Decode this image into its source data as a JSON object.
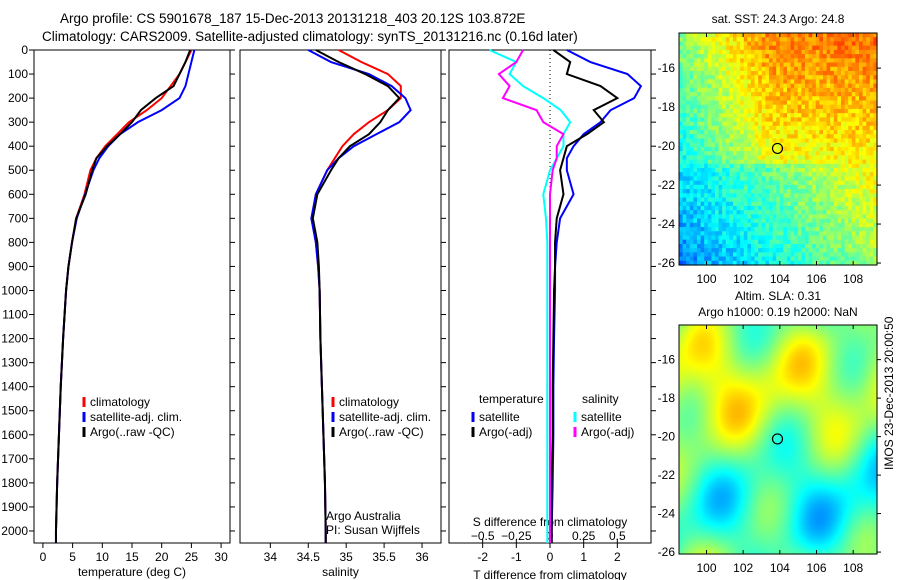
{
  "header": {
    "line1": "Argo profile: CS 5901678_187 15-Dec-2013 20131218_403 20.12S 103.872E",
    "line2": "Climatology: CARS2009. Satellite-adjusted climatology: synTS_20131216.nc (0.16d later)"
  },
  "side_stamp": "IMOS 23-Dec-2013 20:00:50",
  "chart_data": [
    {
      "type": "line",
      "name": "temperature",
      "xlabel": "temperature (deg C)",
      "ylabel": "",
      "xlim": [
        -1.5,
        31.5
      ],
      "ylim": [
        2050,
        0
      ],
      "xticks": [
        0,
        5,
        10,
        15,
        20,
        25,
        30
      ],
      "yticks": [
        0,
        100,
        200,
        300,
        400,
        500,
        600,
        700,
        800,
        900,
        1000,
        1100,
        1200,
        1300,
        1400,
        1500,
        1600,
        1700,
        1800,
        1900,
        2000
      ],
      "depth": [
        0,
        50,
        100,
        150,
        200,
        250,
        300,
        350,
        400,
        450,
        500,
        600,
        700,
        800,
        900,
        1000,
        1200,
        1400,
        1600,
        1800,
        2000,
        2050
      ],
      "legend": [
        "climatology",
        "satellite-adj. clim.",
        "Argo(..raw -QC)"
      ],
      "series": [
        {
          "name": "climatology",
          "color": "#ff0000",
          "values": [
            25,
            24,
            23,
            21.5,
            20,
            17.5,
            14.5,
            12.5,
            10.5,
            9,
            8,
            7,
            5.6,
            4.9,
            4.3,
            3.9,
            3.4,
            3.0,
            2.7,
            2.4,
            2.2,
            2.2
          ]
        },
        {
          "name": "satellite-adj. clim.",
          "color": "#0000ff",
          "values": [
            25.5,
            25,
            24.5,
            24,
            23,
            20,
            16,
            13,
            11,
            9.5,
            8.5,
            7.1,
            5.7,
            4.9,
            4.3,
            3.9,
            3.4,
            3.0,
            2.7,
            2.4,
            2.2,
            2.2
          ]
        },
        {
          "name": "Argo(..raw -QC)",
          "color": "#000000",
          "values": [
            24.8,
            24,
            23,
            22,
            19,
            16.5,
            15,
            13,
            10.8,
            9,
            8.3,
            7.2,
            5.6,
            4.9,
            4.3,
            3.9,
            3.4,
            3.0,
            2.7,
            2.4,
            2.2,
            2.2
          ]
        }
      ]
    },
    {
      "type": "line",
      "name": "salinity",
      "xlabel": "salinity",
      "xlim": [
        33.6,
        36.25
      ],
      "ylim": [
        2050,
        0
      ],
      "xticks": [
        34,
        34.5,
        35,
        35.5,
        36
      ],
      "annotation": [
        "Argo Australia",
        "PI: Susan Wijffels"
      ],
      "depth": [
        0,
        50,
        100,
        150,
        200,
        250,
        300,
        350,
        400,
        450,
        500,
        600,
        700,
        800,
        900,
        1000,
        1200,
        1400,
        1600,
        1800,
        2000,
        2050
      ],
      "legend": [
        "climatology",
        "satellite-adj. clim.",
        "Argo(..raw -QC)"
      ],
      "series": [
        {
          "name": "climatology",
          "color": "#ff0000",
          "values": [
            34.9,
            35.2,
            35.55,
            35.72,
            35.72,
            35.55,
            35.3,
            35.1,
            34.95,
            34.85,
            34.75,
            34.6,
            34.55,
            34.6,
            34.63,
            34.65,
            34.66,
            34.68,
            34.7,
            34.72,
            34.73,
            34.73
          ]
        },
        {
          "name": "satellite-adj. clim.",
          "color": "#0000ff",
          "values": [
            34.5,
            34.8,
            35.3,
            35.6,
            35.78,
            35.85,
            35.7,
            35.4,
            35.1,
            34.9,
            34.75,
            34.6,
            34.54,
            34.6,
            34.63,
            34.65,
            34.66,
            34.68,
            34.7,
            34.72,
            34.73,
            34.73
          ]
        },
        {
          "name": "Argo(..raw -QC)",
          "color": "#000000",
          "values": [
            34.6,
            34.9,
            35.25,
            35.55,
            35.7,
            35.55,
            35.45,
            35.3,
            35.05,
            34.9,
            34.8,
            34.62,
            34.56,
            34.62,
            34.64,
            34.65,
            34.66,
            34.68,
            34.7,
            34.72,
            34.73,
            34.73
          ]
        }
      ]
    },
    {
      "type": "line",
      "name": "differences",
      "xlabel": "T difference from climatology",
      "x2label": "S difference from climatology",
      "xlim": [
        -3,
        3
      ],
      "x2lim": [
        -0.75,
        0.75
      ],
      "ylim": [
        2050,
        0
      ],
      "xticks": [
        -2,
        -1,
        0,
        1,
        2
      ],
      "x2ticks": [
        -0.5,
        -0.25,
        0,
        0.25,
        0.5
      ],
      "legend_titles": [
        "temperature",
        "salinity"
      ],
      "legend": [
        "satellite",
        "Argo(-adj)",
        "satellite",
        "Argo(-adj)"
      ],
      "depth": [
        0,
        50,
        100,
        150,
        200,
        250,
        300,
        350,
        400,
        450,
        500,
        600,
        700,
        800,
        900,
        1000,
        1200,
        1400,
        1600,
        1800,
        2000,
        2050
      ],
      "series": [
        {
          "name": "T satellite",
          "axis": "T",
          "color": "#0000ff",
          "values": [
            0.5,
            1.2,
            2.3,
            2.7,
            2.5,
            1.8,
            1.5,
            1.0,
            0.7,
            0.5,
            0.5,
            0.7,
            0.3,
            0.2,
            0.15,
            0.15,
            0.12,
            0.1,
            0.1,
            0.08,
            0.05,
            0.05
          ]
        },
        {
          "name": "T Argo(-adj)",
          "axis": "T",
          "color": "#000000",
          "values": [
            0.1,
            0.6,
            0.5,
            1.5,
            2.0,
            1.3,
            1.6,
            1.1,
            0.5,
            0.4,
            0.3,
            0.4,
            0.2,
            0.15,
            0.15,
            0.12,
            0.1,
            0.08,
            0.08,
            0.05,
            0.05,
            0.05
          ]
        },
        {
          "name": "S satellite",
          "axis": "S",
          "color": "#00ffff",
          "values": [
            -0.45,
            -0.25,
            -0.3,
            -0.2,
            -0.05,
            0.08,
            0.15,
            0.1,
            0.1,
            0.05,
            0,
            -0.05,
            -0.03,
            -0.02,
            -0.02,
            -0.02,
            -0.02,
            -0.02,
            -0.02,
            -0.02,
            -0.02,
            -0.02
          ]
        },
        {
          "name": "S Argo(-adj)",
          "axis": "S",
          "color": "#ff00ff",
          "values": [
            -0.2,
            -0.25,
            -0.38,
            -0.3,
            -0.35,
            -0.1,
            -0.05,
            0.1,
            0.05,
            0.05,
            0.02,
            0,
            0,
            0,
            0,
            0,
            0,
            0,
            0,
            0,
            0,
            0
          ]
        }
      ]
    },
    {
      "type": "heatmap",
      "name": "sst-map",
      "title": "sat. SST: 24.3 Argo: 24.8",
      "xlim": [
        98.5,
        109.3
      ],
      "ylim": [
        -26.1,
        -14.2
      ],
      "xticks": [
        100,
        102,
        104,
        106,
        108
      ],
      "yticks": [
        -16,
        -18,
        -20,
        -22,
        -24,
        -26
      ],
      "marker": [
        103.872,
        -20.12
      ]
    },
    {
      "type": "heatmap",
      "name": "sla-map",
      "title": [
        "Altim. SLA: 0.31",
        "Argo h1000: 0.19 h2000: NaN"
      ],
      "xlim": [
        98.5,
        109.3
      ],
      "ylim": [
        -26.1,
        -14.2
      ],
      "xticks": [
        100,
        102,
        104,
        106,
        108
      ],
      "yticks": [
        -16,
        -18,
        -20,
        -22,
        -24,
        -26
      ],
      "marker": [
        103.872,
        -20.12
      ]
    }
  ]
}
